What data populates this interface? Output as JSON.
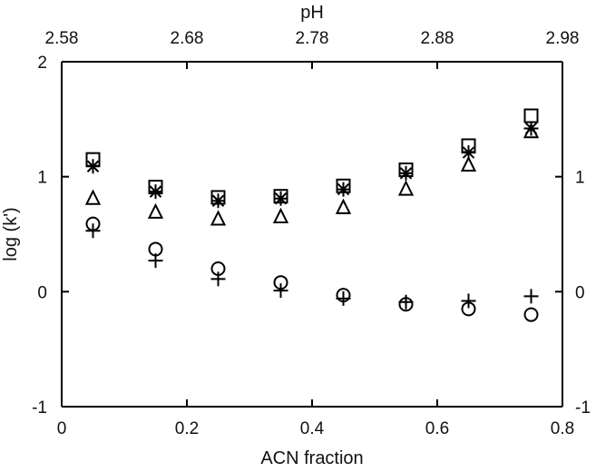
{
  "chart_data": {
    "type": "scatter",
    "xlabel": "ACN fraction",
    "ylabel": "log (k')",
    "top_xlabel": "pH",
    "xlim": [
      0,
      0.8
    ],
    "ylim": [
      -1,
      2
    ],
    "x_ticks": [
      "0",
      "0.2",
      "0.4",
      "0.6",
      "0.8"
    ],
    "y_ticks_left": [
      "-1",
      "0",
      "1",
      "2"
    ],
    "y_ticks_right": [
      "-1",
      "0",
      "1"
    ],
    "top_x_ticks": [
      "2.58",
      "2.68",
      "2.78",
      "2.88",
      "2.98"
    ],
    "series": [
      {
        "marker": "square",
        "points": [
          {
            "x": 0.05,
            "y": 1.15
          },
          {
            "x": 0.15,
            "y": 0.91
          },
          {
            "x": 0.25,
            "y": 0.82
          },
          {
            "x": 0.35,
            "y": 0.83
          },
          {
            "x": 0.45,
            "y": 0.92
          },
          {
            "x": 0.55,
            "y": 1.06
          },
          {
            "x": 0.65,
            "y": 1.27
          },
          {
            "x": 0.75,
            "y": 1.53
          }
        ]
      },
      {
        "marker": "asterisk",
        "points": [
          {
            "x": 0.05,
            "y": 1.09
          },
          {
            "x": 0.15,
            "y": 0.87
          },
          {
            "x": 0.25,
            "y": 0.79
          },
          {
            "x": 0.35,
            "y": 0.81
          },
          {
            "x": 0.45,
            "y": 0.89
          },
          {
            "x": 0.55,
            "y": 1.03
          },
          {
            "x": 0.65,
            "y": 1.21
          },
          {
            "x": 0.75,
            "y": 1.42
          }
        ]
      },
      {
        "marker": "triangle",
        "points": [
          {
            "x": 0.05,
            "y": 0.81
          },
          {
            "x": 0.15,
            "y": 0.69
          },
          {
            "x": 0.25,
            "y": 0.63
          },
          {
            "x": 0.35,
            "y": 0.65
          },
          {
            "x": 0.45,
            "y": 0.73
          },
          {
            "x": 0.55,
            "y": 0.89
          },
          {
            "x": 0.65,
            "y": 1.1
          },
          {
            "x": 0.75,
            "y": 1.39
          }
        ]
      },
      {
        "marker": "circle",
        "points": [
          {
            "x": 0.05,
            "y": 0.59
          },
          {
            "x": 0.15,
            "y": 0.37
          },
          {
            "x": 0.25,
            "y": 0.2
          },
          {
            "x": 0.35,
            "y": 0.08
          },
          {
            "x": 0.45,
            "y": -0.03
          },
          {
            "x": 0.55,
            "y": -0.11
          },
          {
            "x": 0.65,
            "y": -0.15
          },
          {
            "x": 0.75,
            "y": -0.2
          }
        ]
      },
      {
        "marker": "plus",
        "points": [
          {
            "x": 0.05,
            "y": 0.53
          },
          {
            "x": 0.15,
            "y": 0.27
          },
          {
            "x": 0.25,
            "y": 0.11
          },
          {
            "x": 0.35,
            "y": 0.01
          },
          {
            "x": 0.45,
            "y": -0.06
          },
          {
            "x": 0.55,
            "y": -0.09
          },
          {
            "x": 0.65,
            "y": -0.08
          },
          {
            "x": 0.75,
            "y": -0.04
          }
        ]
      }
    ],
    "grid": false,
    "legend": "none"
  }
}
